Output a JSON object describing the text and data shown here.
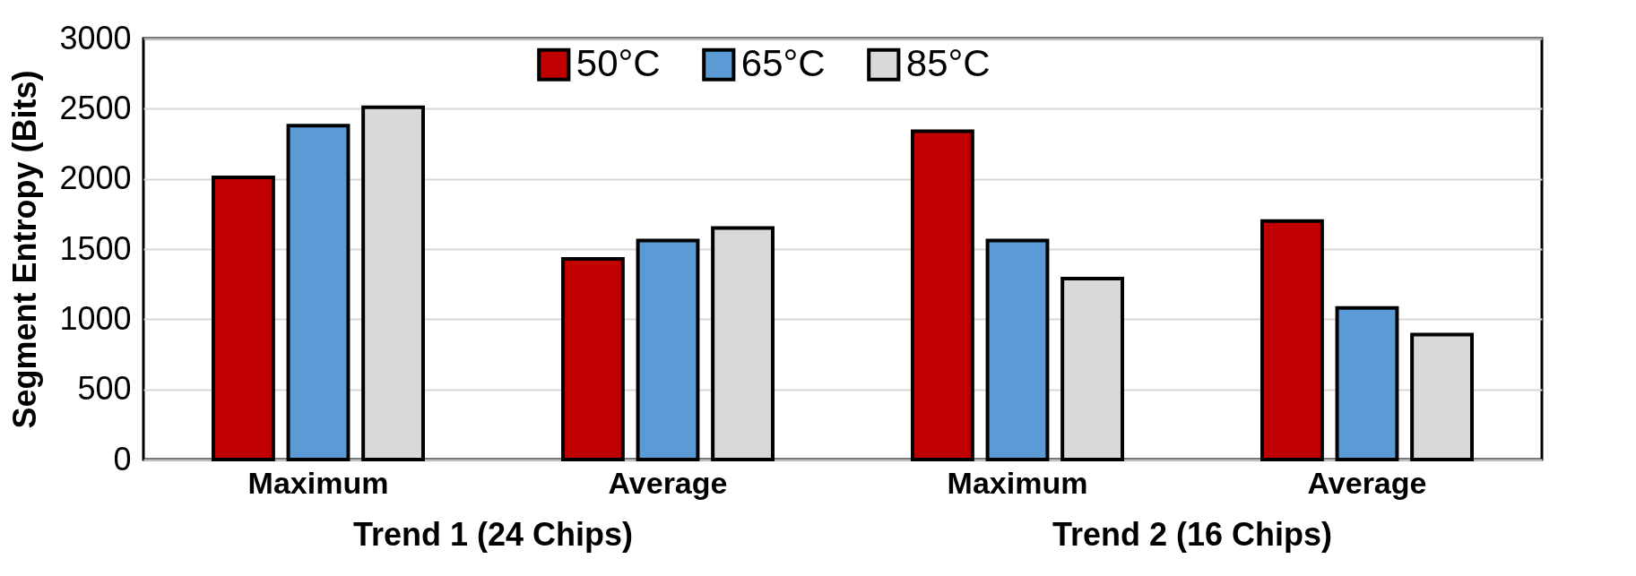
{
  "chart_data": {
    "type": "bar",
    "ylabel": "Segment Entropy (Bits)",
    "categories": [
      "Maximum",
      "Average",
      "Maximum",
      "Average"
    ],
    "series": [
      {
        "name": "50°C",
        "color": "#c00000",
        "values": [
          2010,
          1430,
          2340,
          1700
        ]
      },
      {
        "name": "65°C",
        "color": "#5b9bd5",
        "values": [
          2380,
          1560,
          1560,
          1080
        ]
      },
      {
        "name": "85°C",
        "color": "#d9d9d9",
        "values": [
          2510,
          1650,
          1290,
          890
        ]
      }
    ],
    "ylim": [
      0,
      3000
    ],
    "yticks": [
      0,
      500,
      1000,
      1500,
      2000,
      2500,
      3000
    ],
    "grid": "y",
    "legend": "top",
    "annotations": [
      "Trend 1 (24 Chips)",
      "Trend 2 (16 Chips)"
    ]
  }
}
